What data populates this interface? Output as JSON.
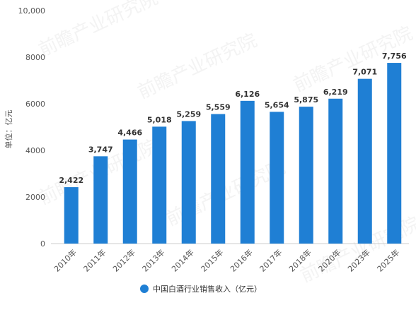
{
  "chart_data": {
    "type": "bar",
    "categories": [
      "2010年",
      "2011年",
      "2012年",
      "2013年",
      "2014年",
      "2015年",
      "2016年",
      "2017年",
      "2018年",
      "2020年",
      "2023年",
      "2025年"
    ],
    "series": [
      {
        "name": "中国白酒行业销售收入（亿元）",
        "values": [
          2422,
          3747,
          4466,
          5018,
          5259,
          5559,
          6126,
          5654,
          5875,
          6219,
          7071,
          7756
        ],
        "labels": [
          "2,422",
          "3,747",
          "4,466",
          "5,018",
          "5,259",
          "5,559",
          "6,126",
          "5,654",
          "5,875",
          "6,219",
          "7,071",
          "7,756"
        ]
      }
    ],
    "ylabel": "单位：亿元",
    "ylim": [
      0,
      10000
    ],
    "yticks": [
      0,
      2000,
      4000,
      6000,
      8000,
      10000
    ],
    "ytick_labels": [
      "0",
      "2000",
      "4000",
      "6000",
      "8000",
      "10,000"
    ],
    "grid": false,
    "legend_position": "bottom-center",
    "colors": {
      "bar": "#1f7fd4"
    },
    "watermark": "前瞻产业研究院"
  }
}
